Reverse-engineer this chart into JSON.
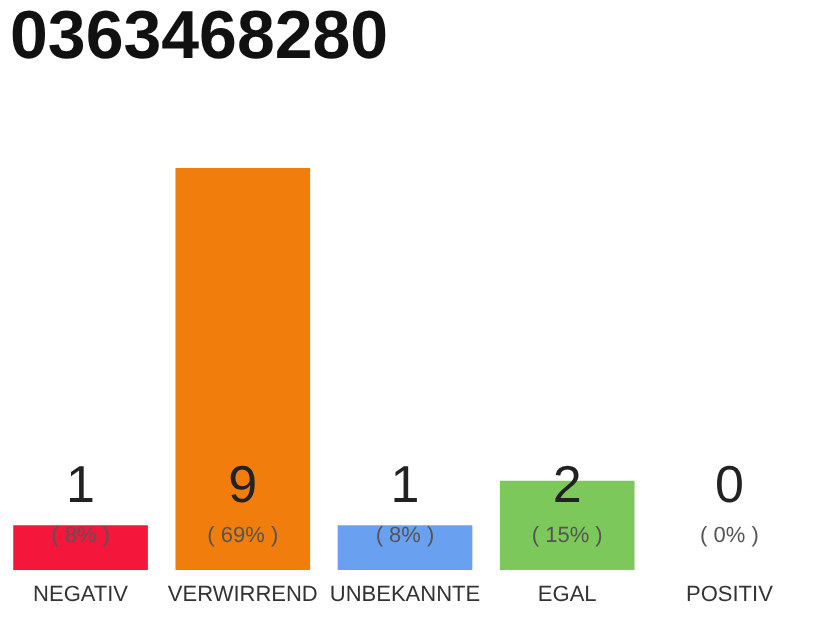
{
  "chart_data": {
    "type": "bar",
    "title": "0363468280",
    "categories": [
      "NEGATIV",
      "VERWIRREND",
      "UNBEKANNTE",
      "EGAL",
      "POSITIV"
    ],
    "values": [
      1,
      9,
      1,
      2,
      0
    ],
    "colors": [
      "#f5163c",
      "#f07d0c",
      "#6aa0f0",
      "#7dc85a",
      "#cccccc"
    ],
    "data_labels": true,
    "annotations": [
      "( 8% )",
      "( 69% )",
      "( 8% )",
      "( 15% )",
      "( 0% )"
    ],
    "grid": false
  }
}
